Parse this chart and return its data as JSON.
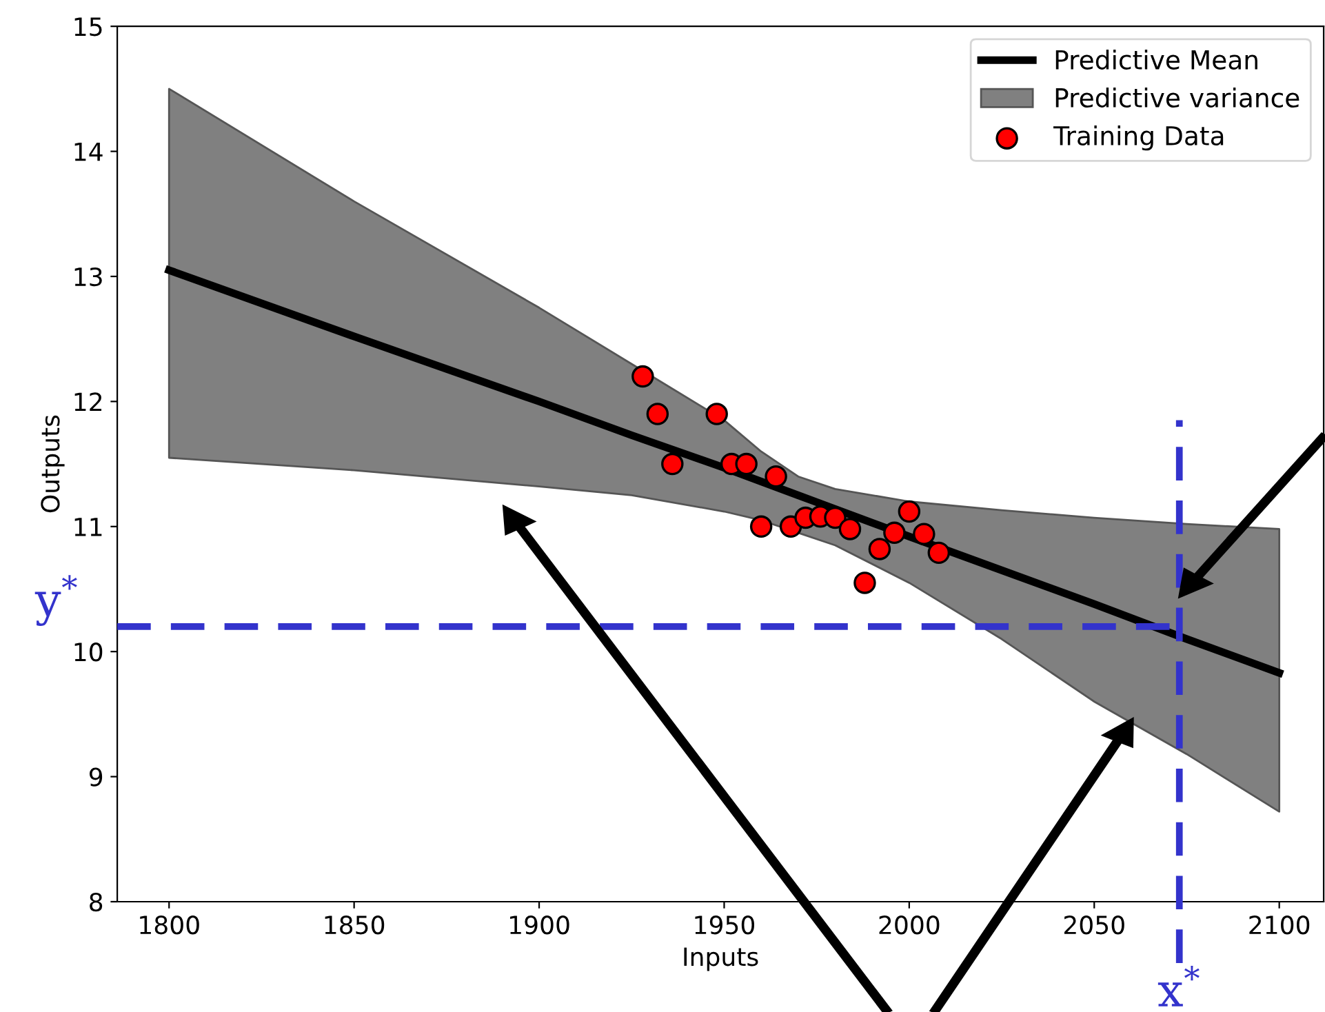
{
  "chart_data": {
    "type": "line",
    "xlabel": "Inputs",
    "ylabel": "Outputs",
    "xlim": [
      1786,
      2112
    ],
    "ylim": [
      8,
      15
    ],
    "xticks": [
      1800,
      1850,
      1900,
      1950,
      2000,
      2050,
      2100
    ],
    "yticks": [
      8,
      9,
      10,
      11,
      12,
      13,
      14,
      15
    ],
    "grid": false,
    "legend": "top right",
    "series": [
      {
        "name": "Predictive Mean",
        "type": "line",
        "color": "#000000",
        "marker": "none",
        "line_style": "solid",
        "x": [
          1800,
          1850,
          1900,
          1925,
          1950,
          1960,
          1970,
          1980,
          2000,
          2025,
          2050,
          2075,
          2100
        ],
        "values": [
          13.05,
          12.52,
          12.0,
          11.73,
          11.47,
          11.36,
          11.25,
          11.14,
          10.92,
          10.65,
          10.38,
          10.1,
          9.83
        ],
        "lower": [
          11.55,
          11.45,
          11.32,
          11.25,
          11.12,
          11.05,
          10.95,
          10.85,
          10.55,
          10.1,
          9.6,
          9.18,
          8.72
        ],
        "upper": [
          14.5,
          13.6,
          12.75,
          12.3,
          11.85,
          11.6,
          11.4,
          11.3,
          11.2,
          11.13,
          11.07,
          11.02,
          10.98
        ]
      },
      {
        "name": "Predictive variance",
        "type": "area",
        "color": "#808080"
      },
      {
        "name": "Training Data",
        "type": "scatter",
        "color": "#ff0000",
        "marker": "circle",
        "x": [
          1928,
          1932,
          1948,
          1936,
          1952,
          1956,
          1964,
          1960,
          1968,
          1972,
          1976,
          1980,
          1984,
          1988,
          1992,
          1996,
          2000,
          2004,
          2008
        ],
        "values": [
          12.2,
          11.9,
          11.9,
          11.5,
          11.5,
          11.5,
          11.4,
          11.0,
          11.0,
          11.07,
          11.08,
          11.07,
          10.98,
          10.55,
          10.82,
          10.95,
          11.12,
          10.94,
          10.79
        ]
      }
    ],
    "ref_lines": [
      {
        "axis": "y",
        "value": 10.2,
        "label": "y$^{*}$",
        "color": "#3333cc",
        "line_style": "dashed"
      },
      {
        "axis": "x",
        "value": 2073,
        "label": "x$^{*}$",
        "color": "#3333cc",
        "line_style": "dashed"
      }
    ]
  }
}
